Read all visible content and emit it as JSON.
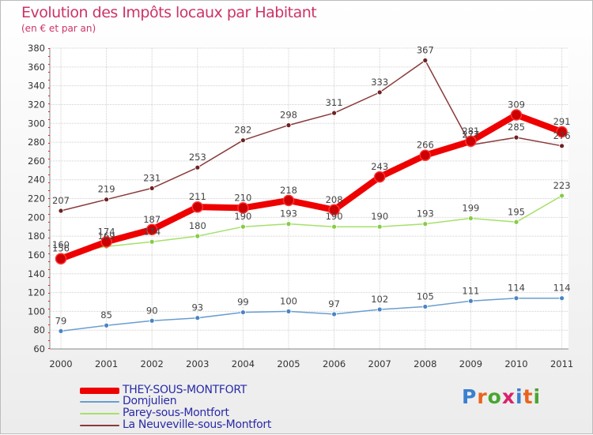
{
  "title": "Evolution des Impôts locaux par Habitant",
  "subtitle": "(en € et par an)",
  "logo": {
    "text": "Proxiti",
    "letter_colors": [
      "#3a7fd0",
      "#e8641e",
      "#4aa531",
      "#d9226b",
      "#3a7fd0",
      "#e8641e",
      "#4aa531"
    ]
  },
  "chart_data": {
    "type": "line",
    "title": "Evolution des Impôts locaux par Habitant",
    "subtitle": "(en € et par an)",
    "xlabel": "",
    "ylabel": "",
    "ylim": [
      60,
      380
    ],
    "ytick_step": 20,
    "grid": true,
    "legend_position": "bottom-left",
    "categories": [
      "2000",
      "2001",
      "2002",
      "2003",
      "2004",
      "2005",
      "2006",
      "2007",
      "2008",
      "2009",
      "2010",
      "2011"
    ],
    "series": [
      {
        "name": "THEY-SOUS-MONTFORT",
        "color": "#ee0000",
        "marker_color": "#cc0000",
        "values": [
          156,
          174,
          187,
          211,
          210,
          218,
          208,
          243,
          266,
          281,
          309,
          291
        ],
        "labels": [
          "156",
          "174",
          "187",
          "211",
          "210",
          "218",
          "208",
          "243",
          "266",
          "281",
          "309",
          "291"
        ]
      },
      {
        "name": "Domjulien",
        "color": "#6a9ed0",
        "marker_color": "#4a84c4",
        "values": [
          79,
          85,
          90,
          93,
          99,
          100,
          97,
          102,
          105,
          111,
          114,
          114
        ],
        "labels": [
          "79",
          "85",
          "90",
          "93",
          "99",
          "100",
          "97",
          "102",
          "105",
          "111",
          "114",
          "114"
        ]
      },
      {
        "name": "Parey-sous-Montfort",
        "color": "#a6e06a",
        "marker_color": "#86cc46",
        "values": [
          160,
          169,
          174,
          180,
          190,
          193,
          190,
          190,
          193,
          199,
          195,
          223
        ],
        "labels": [
          "160",
          "169",
          "174",
          "180",
          "190",
          "193",
          "190",
          "190",
          "193",
          "199",
          "195",
          "223"
        ]
      },
      {
        "name": "La Neuveville-sous-Montfort",
        "color": "#8a3a3a",
        "marker_color": "#6e2222",
        "values": [
          207,
          219,
          231,
          253,
          282,
          298,
          311,
          333,
          367,
          277,
          285,
          276
        ],
        "labels": [
          "207",
          "219",
          "231",
          "253",
          "282",
          "298",
          "311",
          "333",
          "367",
          "277",
          "285",
          "276"
        ]
      }
    ]
  }
}
